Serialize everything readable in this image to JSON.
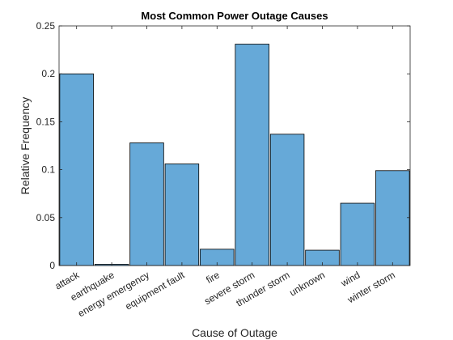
{
  "chart_data": {
    "type": "bar",
    "title": "Most Common Power Outage Causes",
    "xlabel": "Cause of Outage",
    "ylabel": "Relative Frequency",
    "categories": [
      "attack",
      "earthquake",
      "energy emergency",
      "equipment fault",
      "fire",
      "severe storm",
      "thunder storm",
      "unknown",
      "wind",
      "winter storm"
    ],
    "values": [
      0.2,
      0.0013,
      0.128,
      0.106,
      0.017,
      0.231,
      0.137,
      0.016,
      0.065,
      0.099
    ],
    "ylim": [
      0,
      0.25
    ],
    "yticks": [
      0,
      0.05,
      0.1,
      0.15,
      0.2,
      0.25
    ],
    "ytick_labels": [
      "0",
      "0.05",
      "0.1",
      "0.15",
      "0.2",
      "0.25"
    ],
    "bar_color": "#66a9d8",
    "bar_edge_color": "#000000",
    "axis_color": "#262626",
    "grid": false,
    "box": true
  }
}
